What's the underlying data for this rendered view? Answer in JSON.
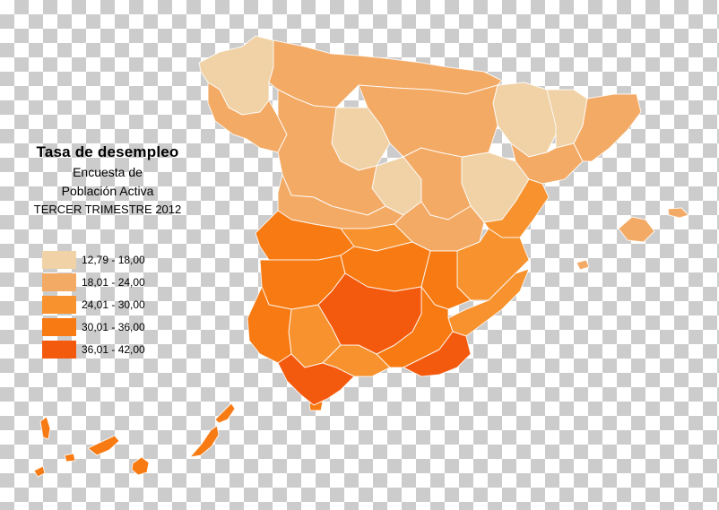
{
  "title": "Tasa de desempleo",
  "subtitle_1": "Encuesta de",
  "subtitle_2": "Población Activa",
  "period": "TERCER TRIMESTRE 2012",
  "colors": {
    "c1": "#f0d2a6",
    "c2": "#f3aa65",
    "c3": "#f7922e",
    "c4": "#f87a12",
    "c5": "#f45a0e",
    "border": "#ffffff"
  },
  "legend": [
    {
      "label": "12,79 - 18,00",
      "color": "#f0d2a6"
    },
    {
      "label": "18,01 - 24,00",
      "color": "#f3aa65"
    },
    {
      "label": "24,01 - 30,00",
      "color": "#f7922e"
    },
    {
      "label": "30,01 - 36,00",
      "color": "#f87a12"
    },
    {
      "label": "36,01 - 42,00",
      "color": "#f45a0e"
    }
  ]
}
